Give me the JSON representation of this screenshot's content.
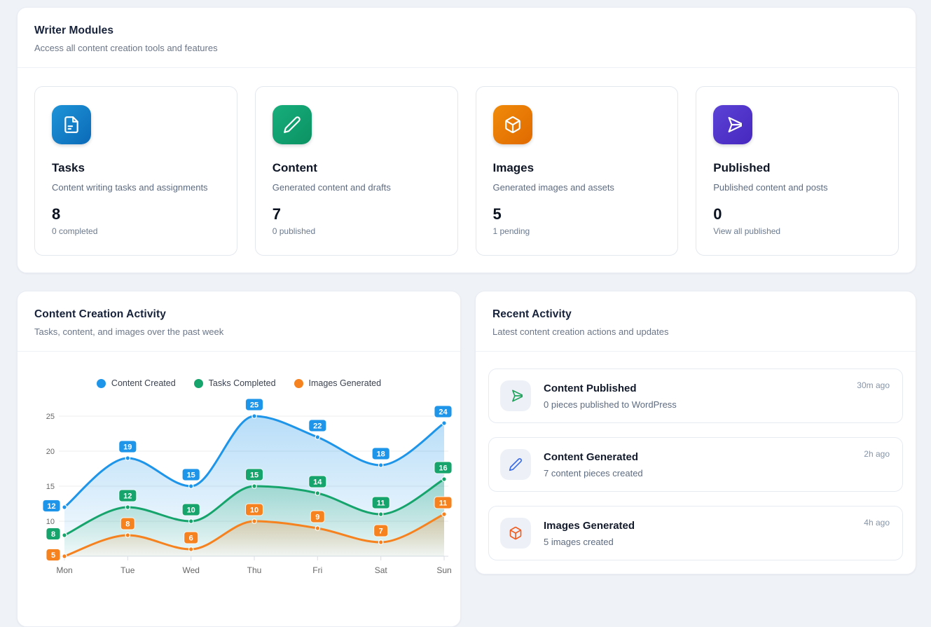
{
  "writer_modules": {
    "title": "Writer Modules",
    "subtitle": "Access all content creation tools and features",
    "cards": [
      {
        "title": "Tasks",
        "description": "Content writing tasks and assignments",
        "value": "8",
        "sub": "0 completed",
        "icon": "file-icon",
        "color": "#0e76c2"
      },
      {
        "title": "Content",
        "description": "Generated content and drafts",
        "value": "7",
        "sub": "0 published",
        "icon": "pencil-icon",
        "color": "#10a06e"
      },
      {
        "title": "Images",
        "description": "Generated images and assets",
        "value": "5",
        "sub": "1 pending",
        "icon": "cube-icon",
        "color": "#ea7a05"
      },
      {
        "title": "Published",
        "description": "Published content and posts",
        "value": "0",
        "sub": "View all published",
        "icon": "send-icon",
        "color": "#5136cc"
      }
    ]
  },
  "activity_chart": {
    "title": "Content Creation Activity",
    "subtitle": "Tasks, content, and images over the past week"
  },
  "chart_data": {
    "type": "line",
    "x": [
      "Mon",
      "Tue",
      "Wed",
      "Thu",
      "Fri",
      "Sat",
      "Sun"
    ],
    "series": [
      {
        "name": "Content Created",
        "color": "#1e95e9",
        "values": [
          12,
          19,
          15,
          25,
          22,
          18,
          24
        ]
      },
      {
        "name": "Tasks Completed",
        "color": "#17a46c",
        "values": [
          8,
          12,
          10,
          15,
          14,
          11,
          16
        ]
      },
      {
        "name": "Images Generated",
        "color": "#f5821f",
        "values": [
          5,
          8,
          6,
          10,
          9,
          7,
          11
        ]
      }
    ],
    "ylim": [
      5,
      25
    ],
    "yticks": [
      5,
      10,
      15,
      20,
      25
    ],
    "grid": true,
    "legend_position": "top",
    "smooth": true,
    "area_fill": true,
    "point_labels": true
  },
  "recent_activity": {
    "title": "Recent Activity",
    "subtitle": "Latest content creation actions and updates",
    "items": [
      {
        "title": "Content Published",
        "description": "0 pieces published to WordPress",
        "time": "30m ago",
        "icon": "send-icon",
        "icon_color": "#1fa45c"
      },
      {
        "title": "Content Generated",
        "description": "7 content pieces created",
        "time": "2h ago",
        "icon": "pencil-icon",
        "icon_color": "#3b6ce8"
      },
      {
        "title": "Images Generated",
        "description": "5 images created",
        "time": "4h ago",
        "icon": "cube-icon",
        "icon_color": "#f05e23"
      }
    ]
  }
}
